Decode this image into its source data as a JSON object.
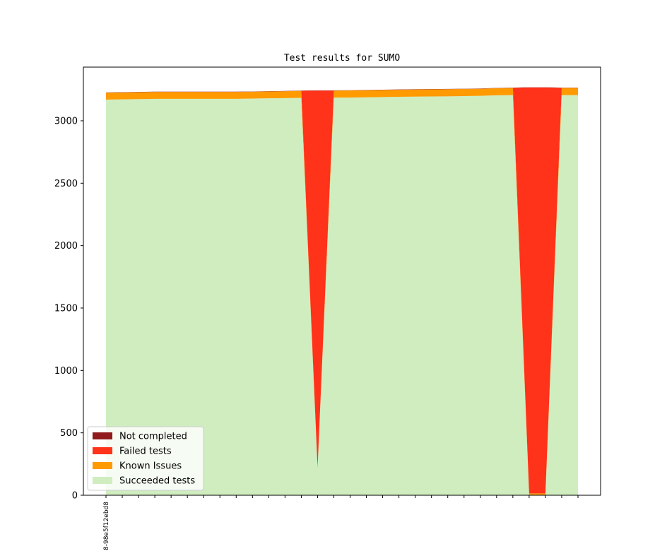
{
  "chart_data": {
    "type": "area",
    "title": "Test results for SUMO",
    "xlabel": "",
    "ylabel": "",
    "ylim": [
      0,
      3430
    ],
    "y_ticks": [
      0,
      500,
      1000,
      1500,
      2000,
      2500,
      3000
    ],
    "x_tick_labels": [
      "8-98e5f12ebd8"
    ],
    "legend_location": "lower left",
    "grid": false,
    "stack_order": [
      "Succeeded tests",
      "Known Issues",
      "Failed tests",
      "Not completed"
    ],
    "series": [
      {
        "name": "Succeeded tests",
        "color": "#d0edc0",
        "values": [
          3170,
          3172,
          3174,
          3176,
          3176,
          3176,
          3176,
          3176,
          3176,
          3178,
          3180,
          3182,
          3184,
          220,
          3186,
          3186,
          3188,
          3190,
          3192,
          3194,
          3195,
          3196,
          3198,
          3200,
          3204,
          3206,
          0,
          0,
          3206,
          3206
        ]
      },
      {
        "name": "Known Issues",
        "color": "#ff9a00",
        "values": [
          55,
          55,
          55,
          55,
          55,
          55,
          55,
          55,
          55,
          55,
          55,
          55,
          56,
          0,
          56,
          57,
          57,
          57,
          57,
          57,
          57,
          57,
          57,
          57,
          57,
          58,
          15,
          15,
          58,
          58
        ]
      },
      {
        "name": "Failed tests",
        "color": "#ff321a",
        "values": [
          0,
          0,
          0,
          0,
          0,
          0,
          0,
          0,
          0,
          0,
          0,
          0,
          0,
          3022,
          0,
          0,
          0,
          0,
          0,
          0,
          0,
          0,
          0,
          0,
          0,
          0,
          3252,
          3252,
          0,
          0
        ]
      },
      {
        "name": "Not completed",
        "color": "#911a1c",
        "values": [
          2,
          2,
          2,
          2,
          2,
          2,
          2,
          2,
          2,
          2,
          2,
          2,
          2,
          2,
          2,
          2,
          2,
          2,
          2,
          2,
          2,
          2,
          2,
          2,
          2,
          2,
          2,
          2,
          2,
          2
        ]
      }
    ]
  }
}
